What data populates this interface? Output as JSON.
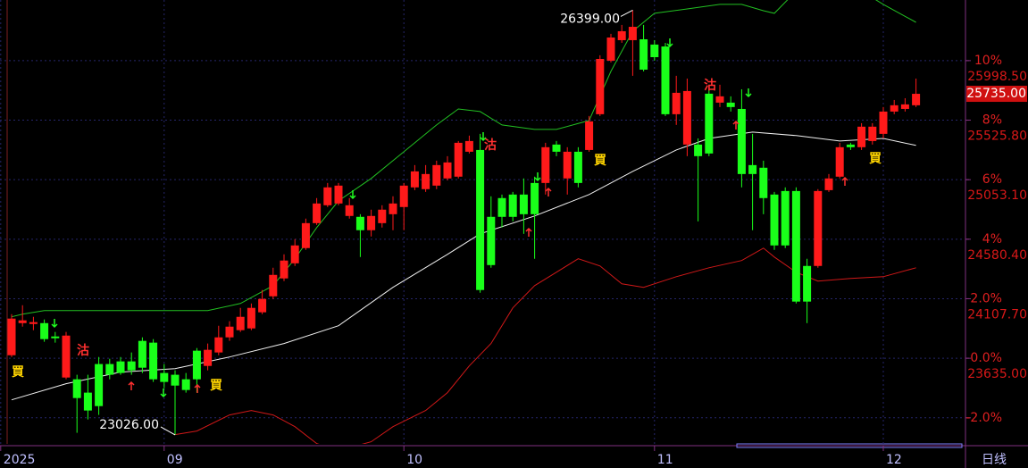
{
  "chart_data": {
    "type": "candlestick",
    "categories": [
      null,
      null,
      null,
      null,
      null,
      null,
      null,
      null,
      null,
      null,
      null,
      null,
      null,
      null,
      null,
      null,
      null,
      null,
      null,
      null,
      null,
      null,
      null,
      null,
      null,
      null,
      null,
      null,
      null,
      null,
      null,
      null,
      null,
      null,
      null,
      null,
      null,
      null,
      null,
      null,
      null,
      null,
      null,
      null,
      null,
      null,
      null,
      null,
      null,
      null,
      null,
      null,
      null,
      null,
      null,
      null,
      null,
      null,
      null,
      null,
      null,
      null,
      null,
      null,
      null,
      null,
      null,
      null,
      null,
      null,
      null,
      null,
      null,
      null,
      null,
      null,
      null,
      null,
      null,
      null,
      null,
      null,
      null,
      null
    ],
    "open": [
      23659,
      23914,
      23907,
      23914,
      23808,
      23482,
      23468,
      23362,
      23589,
      23589,
      23610,
      23610,
      23773,
      23759,
      23518,
      23504,
      23468,
      23695,
      23574,
      23681,
      23801,
      23858,
      23872,
      24000,
      24127,
      24269,
      24389,
      24510,
      24708,
      24850,
      24864,
      24765,
      24758,
      24652,
      24708,
      24779,
      24836,
      24992,
      24978,
      25006,
      25063,
      25077,
      25275,
      25289,
      24758,
      24907,
      24935,
      24935,
      25027,
      25027,
      25332,
      25063,
      25275,
      25289,
      25573,
      25998,
      26161,
      26161,
      26168,
      26126,
      26111,
      25573,
      25332,
      25332,
      25736,
      25665,
      25665,
      25615,
      25169,
      25148,
      24935,
      24963,
      24963,
      24368,
      24368,
      24970,
      25077,
      25332,
      25311,
      25360,
      25417,
      25594,
      25615,
      25644
    ],
    "high": [
      23985,
      24056,
      23964,
      23943,
      23844,
      23844,
      23504,
      23504,
      23645,
      23631,
      23645,
      23681,
      23801,
      23787,
      23589,
      23539,
      23518,
      23716,
      23752,
      23893,
      23929,
      24035,
      24070,
      24177,
      24354,
      24460,
      24581,
      24744,
      24907,
      25027,
      25027,
      24907,
      24779,
      24815,
      24850,
      24921,
      25027,
      25169,
      25169,
      25204,
      25240,
      25360,
      25403,
      25417,
      24921,
      24935,
      24956,
      25063,
      25077,
      25346,
      25360,
      25311,
      25311,
      25559,
      26041,
      26211,
      26282,
      26399,
      26282,
      26161,
      26140,
      25878,
      25856,
      25381,
      25771,
      25807,
      25715,
      25771,
      25417,
      25204,
      24956,
      24992,
      24992,
      24425,
      24978,
      25098,
      25346,
      25346,
      25502,
      25502,
      25630,
      25686,
      25700,
      25856
    ],
    "low": [
      23645,
      23886,
      23858,
      23766,
      23759,
      23468,
      23043,
      23149,
      23185,
      23468,
      23504,
      23504,
      23518,
      23447,
      23397,
      23026,
      23362,
      23362,
      23539,
      23659,
      23773,
      23844,
      23858,
      23985,
      24106,
      24248,
      24368,
      24496,
      24694,
      24836,
      24850,
      24744,
      24439,
      24602,
      24673,
      24652,
      24652,
      24970,
      24956,
      24978,
      25048,
      25063,
      25261,
      24155,
      24354,
      24673,
      24722,
      24623,
      24425,
      24935,
      25240,
      24935,
      24992,
      25275,
      25559,
      25984,
      26140,
      25878,
      25913,
      25998,
      25559,
      25488,
      25240,
      24722,
      25240,
      25630,
      25594,
      24992,
      24652,
      24779,
      24496,
      24510,
      24070,
      23914,
      24354,
      24956,
      25063,
      25289,
      25289,
      25332,
      25381,
      25573,
      25594,
      25630
    ],
    "close": [
      23950,
      23936,
      23922,
      23787,
      23794,
      23815,
      23319,
      23220,
      23255,
      23504,
      23518,
      23539,
      23560,
      23468,
      23447,
      23418,
      23383,
      23468,
      23702,
      23801,
      23886,
      23964,
      24035,
      24106,
      24297,
      24411,
      24531,
      24708,
      24864,
      24992,
      25006,
      24850,
      24652,
      24765,
      24815,
      24864,
      25006,
      25119,
      25098,
      25169,
      25190,
      25346,
      25360,
      24177,
      24375,
      24758,
      24758,
      24779,
      24779,
      25311,
      25275,
      25275,
      25027,
      25516,
      26012,
      26182,
      26232,
      26267,
      25927,
      26026,
      25573,
      25743,
      25757,
      25240,
      25261,
      25715,
      25630,
      25098,
      25098,
      24907,
      24531,
      24531,
      24085,
      24085,
      24963,
      25063,
      25311,
      25311,
      25474,
      25474,
      25594,
      25644,
      25651,
      25735
    ],
    "up_color": "#ff1a1a",
    "down_color": "#1aff1a",
    "bands": [
      {
        "color": "#f0f0f0",
        "x": [
          0,
          5,
          10,
          15,
          20,
          25,
          30,
          35,
          40,
          43,
          48,
          53,
          57,
          61,
          64,
          68,
          72,
          76,
          80,
          83
        ],
        "values": [
          23305,
          23433,
          23525,
          23553,
          23645,
          23752,
          23893,
          24198,
          24460,
          24623,
          24765,
          24935,
          25119,
          25289,
          25381,
          25431,
          25403,
          25360,
          25381,
          25325
        ]
      },
      {
        "color": "#22c022",
        "x": [
          0,
          1,
          3,
          8,
          12,
          18,
          21,
          24,
          26,
          28,
          30,
          33,
          36,
          39,
          41,
          43,
          45,
          48,
          50,
          53,
          55,
          57,
          59,
          62,
          65,
          67,
          69,
          70,
          72,
          78,
          80,
          83
        ],
        "values": [
          23964,
          23985,
          24014,
          24014,
          24014,
          24014,
          24070,
          24212,
          24425,
          24673,
          24885,
          25063,
          25275,
          25488,
          25615,
          25594,
          25488,
          25452,
          25452,
          25523,
          25913,
          26232,
          26374,
          26409,
          26445,
          26445,
          26395,
          26374,
          26551,
          26551,
          26445,
          26303
        ]
      },
      {
        "color": "#d01818",
        "x": [
          15,
          17,
          20,
          22,
          24,
          26,
          28,
          30,
          33,
          35,
          38,
          40,
          42,
          44,
          46,
          48,
          50,
          52,
          54,
          56,
          58,
          61,
          64,
          67,
          69,
          70,
          72,
          74,
          77,
          80,
          83
        ],
        "values": [
          23029,
          23057,
          23185,
          23220,
          23185,
          23092,
          22958,
          22901,
          22972,
          23092,
          23220,
          23362,
          23574,
          23752,
          24035,
          24212,
          24318,
          24425,
          24368,
          24226,
          24198,
          24283,
          24354,
          24411,
          24510,
          24439,
          24318,
          24248,
          24269,
          24283,
          24354
        ]
      }
    ],
    "ylim": [
      22955,
      26480
    ],
    "yticks": [
      {
        "value": 25998.5,
        "label": "25998.50"
      },
      {
        "value": 25525.8,
        "label": "25525.80"
      },
      {
        "value": 25053.1,
        "label": "25053.10"
      },
      {
        "value": 24580.4,
        "label": "24580.40"
      },
      {
        "value": 24107.7,
        "label": "24107.70"
      },
      {
        "value": 23635,
        "label": "23635.00"
      }
    ],
    "y2lim": [
      -2.877,
      12.037
    ],
    "y2ticks": [
      {
        "value": 10,
        "label": "10%"
      },
      {
        "value": 8,
        "label": "8%"
      },
      {
        "value": 6,
        "label": "6%"
      },
      {
        "value": 4,
        "label": "4%"
      },
      {
        "value": 2,
        "label": "2.0%"
      },
      {
        "value": 0,
        "label": "0.0%"
      },
      {
        "value": -2,
        "label": "-2.0%"
      }
    ],
    "xlim": [
      -1,
      87
    ],
    "xticks": [
      {
        "value": -1,
        "label": "2025"
      },
      {
        "value": 14,
        "label": "09"
      },
      {
        "value": 36,
        "label": "10"
      },
      {
        "value": 59,
        "label": "11"
      },
      {
        "value": 80,
        "label": "12"
      }
    ],
    "high_label": {
      "value": 26399,
      "label": "26399.00"
    },
    "low_label": {
      "value": 23026,
      "label": "23026.00"
    },
    "last_price": {
      "value": 25735,
      "label": "25735.00"
    },
    "annotations": [
      "買",
      "沽",
      "買",
      "沽",
      "買",
      "沽",
      "買"
    ],
    "period": "日线",
    "grid": true
  }
}
